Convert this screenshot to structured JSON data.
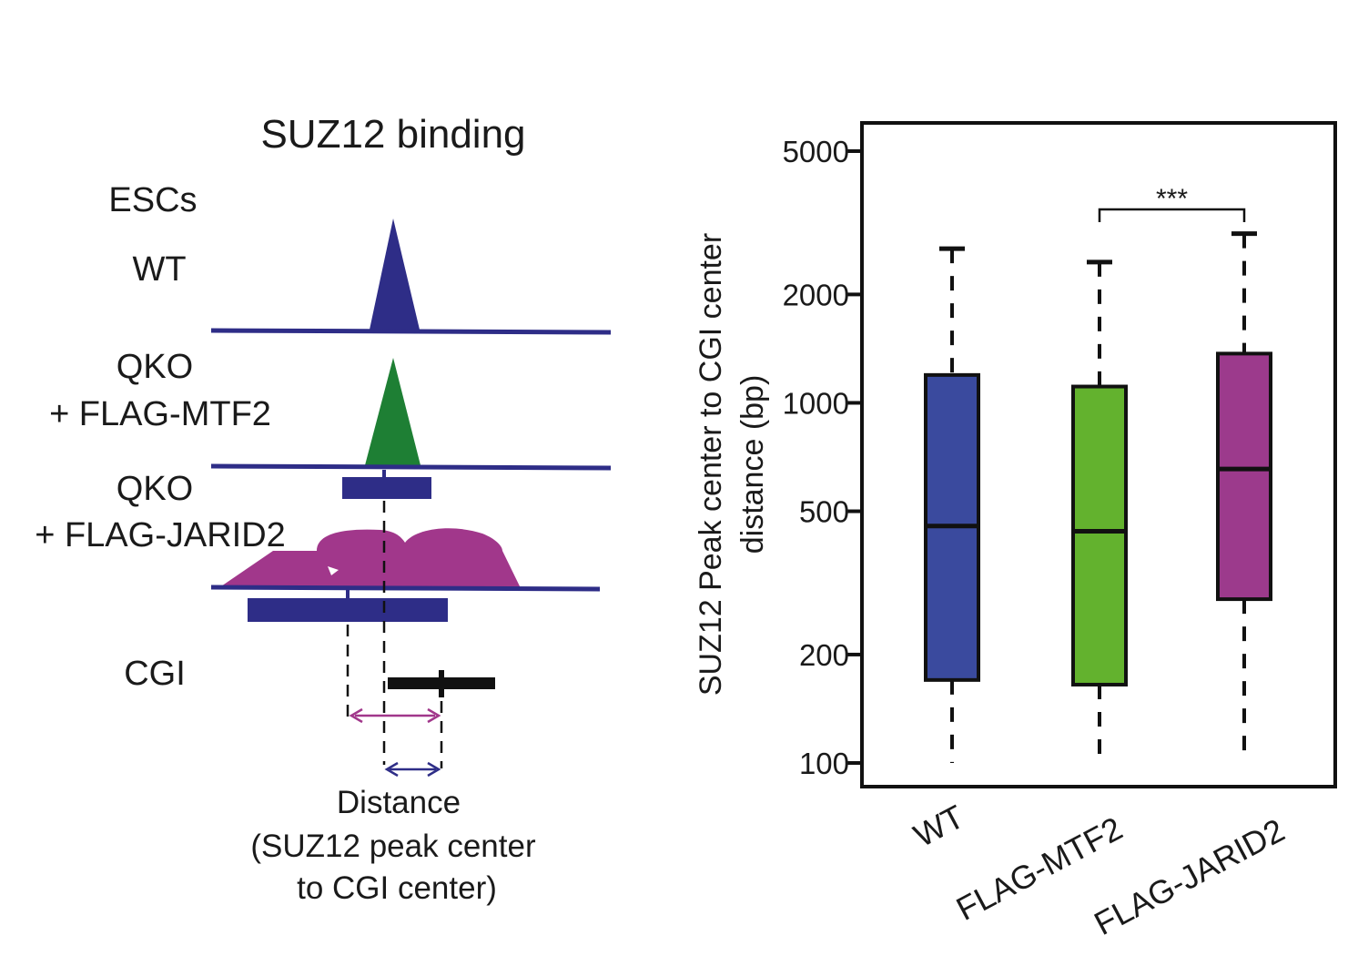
{
  "colors": {
    "wt": "#2e2d87",
    "mtf2": "#1e7f34",
    "jarid2": "#a1378b",
    "box_wt": "#3a4a9e",
    "box_mtf2": "#63b22e",
    "box_jarid2": "#9c3a8c",
    "cgi": "#111111"
  },
  "schematic": {
    "title": "SUZ12 binding",
    "section_label": "ESCs",
    "wt_label": "WT",
    "mtf2_label_line1": "QKO",
    "mtf2_label_line2": "+ FLAG-MTF2",
    "jarid2_label_line1": "QKO",
    "jarid2_label_line2": "+ FLAG-JARID2",
    "cgi_label": "CGI",
    "distance_line1": "Distance",
    "distance_line2": "(SUZ12 peak center",
    "distance_line3": "to CGI center)"
  },
  "chart_data": {
    "type": "box",
    "ylabel_line1": "SUZ12 Peak center to CGI center",
    "ylabel_line2": "distance (bp)",
    "y_scale": "log",
    "ylim": [
      90,
      6200
    ],
    "yticks": [
      100,
      200,
      500,
      1000,
      2000,
      5000
    ],
    "categories": [
      "WT",
      "FLAG-MTF2",
      "FLAG-JARID2"
    ],
    "boxes": [
      {
        "whisker_low": 100,
        "q1": 170,
        "median": 455,
        "q3": 1195,
        "whisker_high": 2680
      },
      {
        "whisker_low": 100,
        "q1": 165,
        "median": 440,
        "q3": 1110,
        "whisker_high": 2460
      },
      {
        "whisker_low": 100,
        "q1": 285,
        "median": 655,
        "q3": 1370,
        "whisker_high": 2950
      }
    ],
    "significance": {
      "from": 1,
      "to": 2,
      "label": "***"
    }
  }
}
